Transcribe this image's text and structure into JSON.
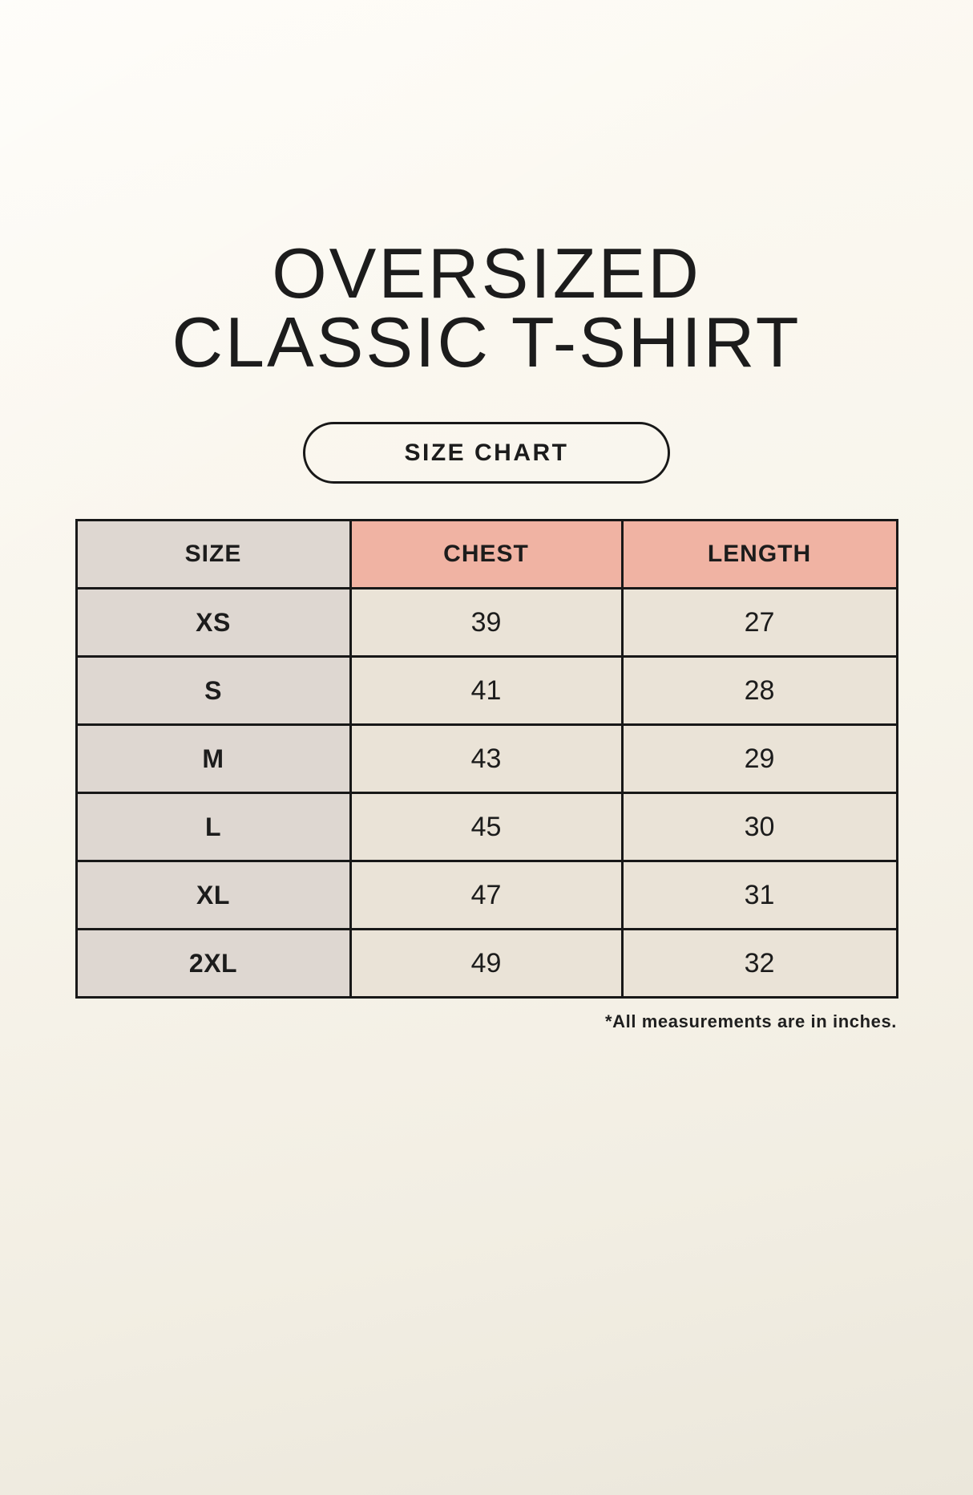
{
  "page": {
    "title_line1": "OVERSIZED",
    "title_line2": "CLASSIC T-SHIRT",
    "badge_label": "SIZE CHART",
    "footnote": "*All measurements are in inches."
  },
  "size_chart": {
    "columns": [
      "SIZE",
      "CHEST",
      "LENGTH"
    ],
    "rows": [
      {
        "size": "XS",
        "chest": "39",
        "length": "27"
      },
      {
        "size": "S",
        "chest": "41",
        "length": "28"
      },
      {
        "size": "M",
        "chest": "43",
        "length": "29"
      },
      {
        "size": "L",
        "chest": "45",
        "length": "30"
      },
      {
        "size": "XL",
        "chest": "47",
        "length": "31"
      },
      {
        "size": "2XL",
        "chest": "49",
        "length": "32"
      }
    ],
    "units": "inches"
  },
  "colors": {
    "bg-top": "#fdfaf3",
    "bg-bottom": "#ebe7db",
    "cell-gray": "#ded7d1",
    "cell-pink": "#f0b3a3",
    "cell-cream": "#eae3d7",
    "line": "#181818",
    "ink": "#1c1c1c"
  }
}
